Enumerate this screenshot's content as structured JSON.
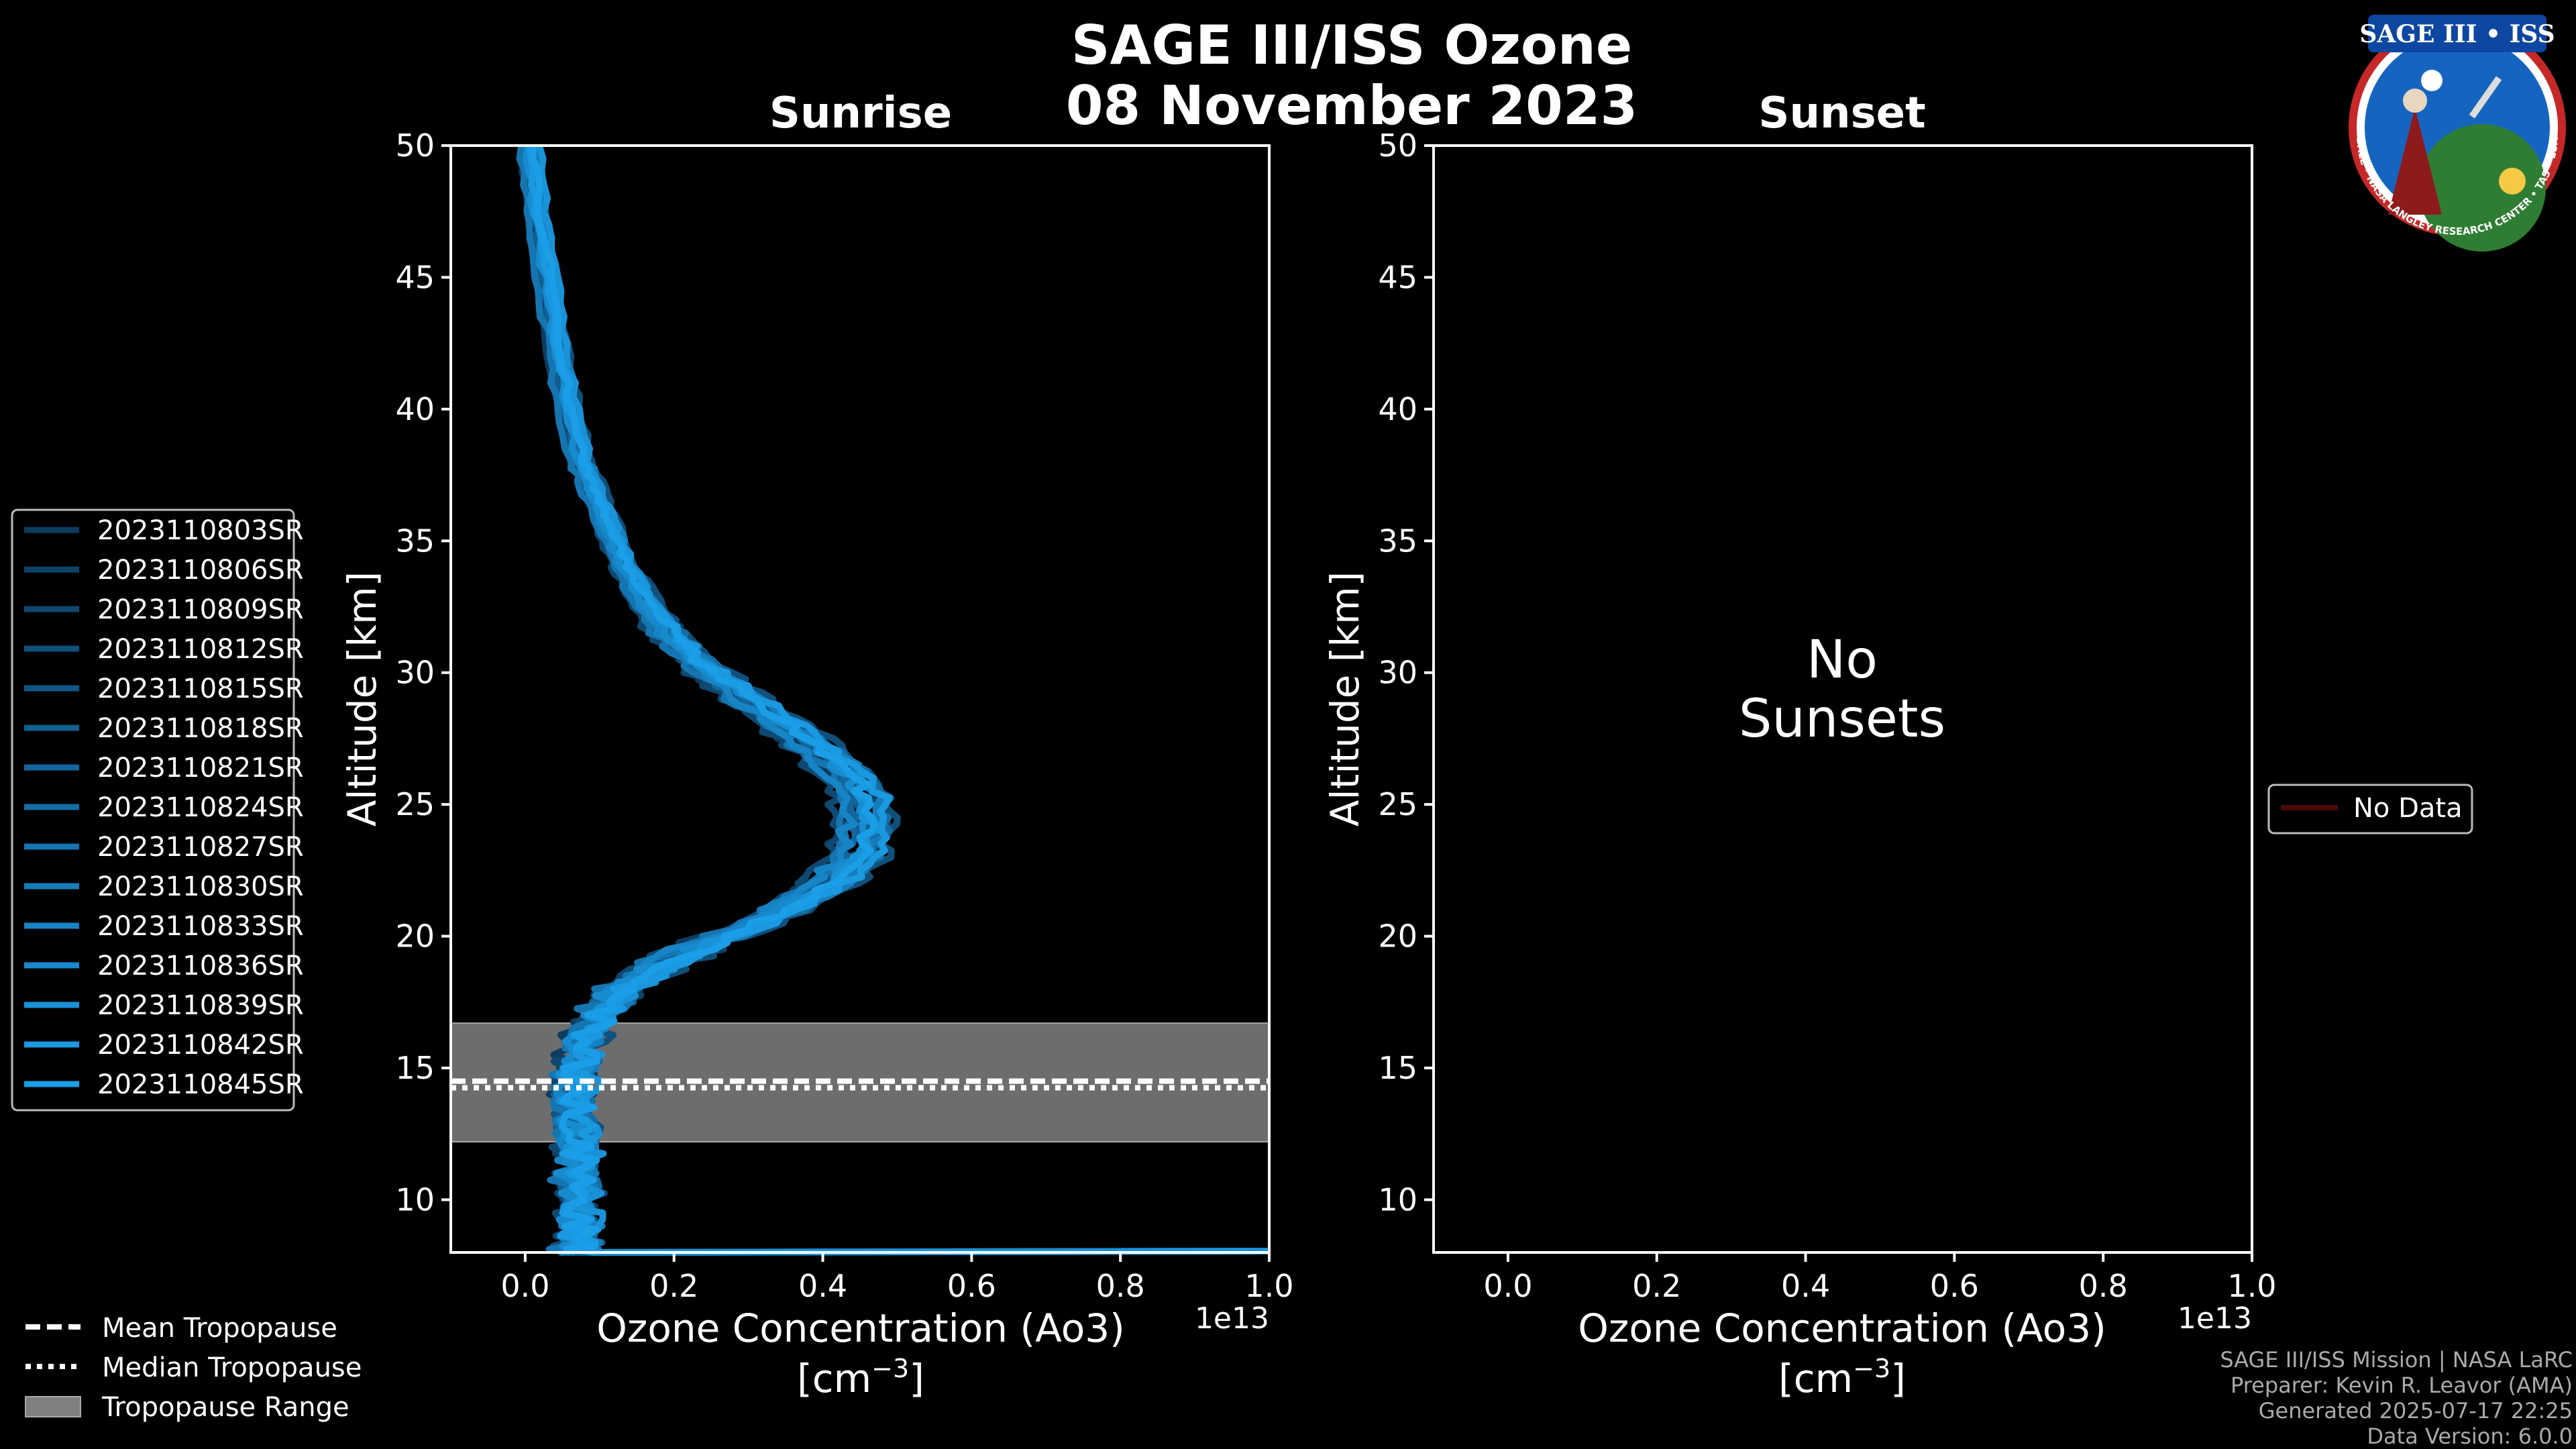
{
  "figure": {
    "title_line1": "SAGE III/ISS Ozone",
    "title_line2": "08 November 2023",
    "background": "#000000",
    "text_color": "#ffffff",
    "tropopause_color": "#808080"
  },
  "logo": {
    "text_top": "SAGE III • ISS",
    "text_ring": "BALL • NASA LANGLEY RESEARCH CENTER • TAS • ESA",
    "colors": {
      "ring": "#c62828",
      "field": "#1565c0",
      "earth": "#2e7d32"
    }
  },
  "footer": {
    "line1": "SAGE III/ISS Mission | NASA LaRC",
    "line2": "Preparer: Kevin R. Leavor (AMA)",
    "line3": "Generated 2025-07-17 22:25",
    "line4": "Data Version: 6.0.0"
  },
  "tropopause_legend": [
    {
      "label": "Mean Tropopause",
      "style": "dashed"
    },
    {
      "label": "Median Tropopause",
      "style": "dotted"
    },
    {
      "label": "Tropopause Range",
      "style": "patch"
    }
  ],
  "chart_data": [
    {
      "type": "line",
      "panel": "sunrise",
      "title": "Sunrise",
      "xlabel": "Ozone Concentration (Ao3)",
      "xlabel_units": "[cm⁻³]",
      "x_offset_label": "1e13",
      "ylabel": "Altitude [km]",
      "xlim": [
        -0.1,
        1.0
      ],
      "ylim": [
        8,
        50
      ],
      "xticks": [
        0.0,
        0.2,
        0.4,
        0.6,
        0.8,
        1.0
      ],
      "xtick_labels": [
        "0.0",
        "0.2",
        "0.4",
        "0.6",
        "0.8",
        "1.0"
      ],
      "yticks": [
        10,
        15,
        20,
        25,
        30,
        35,
        40,
        45,
        50
      ],
      "ytick_labels": [
        "10",
        "15",
        "20",
        "25",
        "30",
        "35",
        "40",
        "45",
        "50"
      ],
      "tropopause": {
        "mean_km": 14.5,
        "median_km": 14.25,
        "range_km": [
          12.2,
          16.7
        ]
      },
      "base_profile": {
        "altitude": [
          8,
          8.5,
          9,
          10,
          11,
          12,
          13,
          14,
          15,
          16,
          17,
          18,
          19,
          20,
          21,
          22,
          23,
          24,
          25,
          26,
          27,
          28,
          29,
          30,
          31,
          32,
          33,
          34,
          35,
          36,
          37,
          38,
          40,
          42,
          44,
          46,
          48,
          50
        ],
        "ozone": [
          0.07,
          0.07,
          0.07,
          0.07,
          0.07,
          0.07,
          0.065,
          0.065,
          0.07,
          0.08,
          0.1,
          0.13,
          0.19,
          0.27,
          0.35,
          0.41,
          0.45,
          0.46,
          0.46,
          0.44,
          0.4,
          0.35,
          0.3,
          0.25,
          0.21,
          0.18,
          0.155,
          0.135,
          0.12,
          0.105,
          0.09,
          0.075,
          0.06,
          0.045,
          0.035,
          0.025,
          0.015,
          0.007
        ]
      },
      "series": [
        {
          "name": "2023110803SR",
          "scale": 0.96,
          "shift": -0.01,
          "color": "#0d3c5e"
        },
        {
          "name": "2023110806SR",
          "scale": 1.03,
          "shift": 0.005,
          "color": "#0e4266"
        },
        {
          "name": "2023110809SR",
          "scale": 0.92,
          "shift": -0.005,
          "color": "#0f4870"
        },
        {
          "name": "2023110812SR",
          "scale": 1.05,
          "shift": 0.01,
          "color": "#10507b"
        },
        {
          "name": "2023110815SR",
          "scale": 0.99,
          "shift": 0.0,
          "color": "#115785"
        },
        {
          "name": "2023110818SR",
          "scale": 1.01,
          "shift": -0.008,
          "color": "#125e90"
        },
        {
          "name": "2023110821SR",
          "scale": 0.95,
          "shift": 0.006,
          "color": "#13669b"
        },
        {
          "name": "2023110824SR",
          "scale": 1.04,
          "shift": 0.002,
          "color": "#146ea6"
        },
        {
          "name": "2023110827SR",
          "scale": 0.97,
          "shift": -0.012,
          "color": "#1575b1"
        },
        {
          "name": "2023110830SR",
          "scale": 1.02,
          "shift": 0.008,
          "color": "#167dbc"
        },
        {
          "name": "2023110833SR",
          "scale": 0.94,
          "shift": 0.0,
          "color": "#1784c6"
        },
        {
          "name": "2023110836SR",
          "scale": 1.0,
          "shift": -0.004,
          "color": "#188bcf"
        },
        {
          "name": "2023110839SR",
          "scale": 0.98,
          "shift": 0.012,
          "color": "#1992d8"
        },
        {
          "name": "2023110842SR",
          "scale": 1.06,
          "shift": -0.002,
          "color": "#1a98e0"
        },
        {
          "name": "2023110845SR",
          "scale": 1.0,
          "shift": 0.004,
          "color": "#1b9ee8"
        }
      ]
    },
    {
      "type": "line",
      "panel": "sunset",
      "title": "Sunset",
      "xlabel": "Ozone Concentration (Ao3)",
      "xlabel_units": "[cm⁻³]",
      "x_offset_label": "1e13",
      "ylabel": "Altitude [km]",
      "xlim": [
        -0.1,
        1.0
      ],
      "ylim": [
        8,
        50
      ],
      "xticks": [
        0.0,
        0.2,
        0.4,
        0.6,
        0.8,
        1.0
      ],
      "xtick_labels": [
        "0.0",
        "0.2",
        "0.4",
        "0.6",
        "0.8",
        "1.0"
      ],
      "yticks": [
        10,
        15,
        20,
        25,
        30,
        35,
        40,
        45,
        50
      ],
      "ytick_labels": [
        "10",
        "15",
        "20",
        "25",
        "30",
        "35",
        "40",
        "45",
        "50"
      ],
      "annotation_line1": "No",
      "annotation_line2": "Sunsets",
      "series": [
        {
          "name": "No Data",
          "color": "#4a0a0a"
        }
      ]
    }
  ]
}
